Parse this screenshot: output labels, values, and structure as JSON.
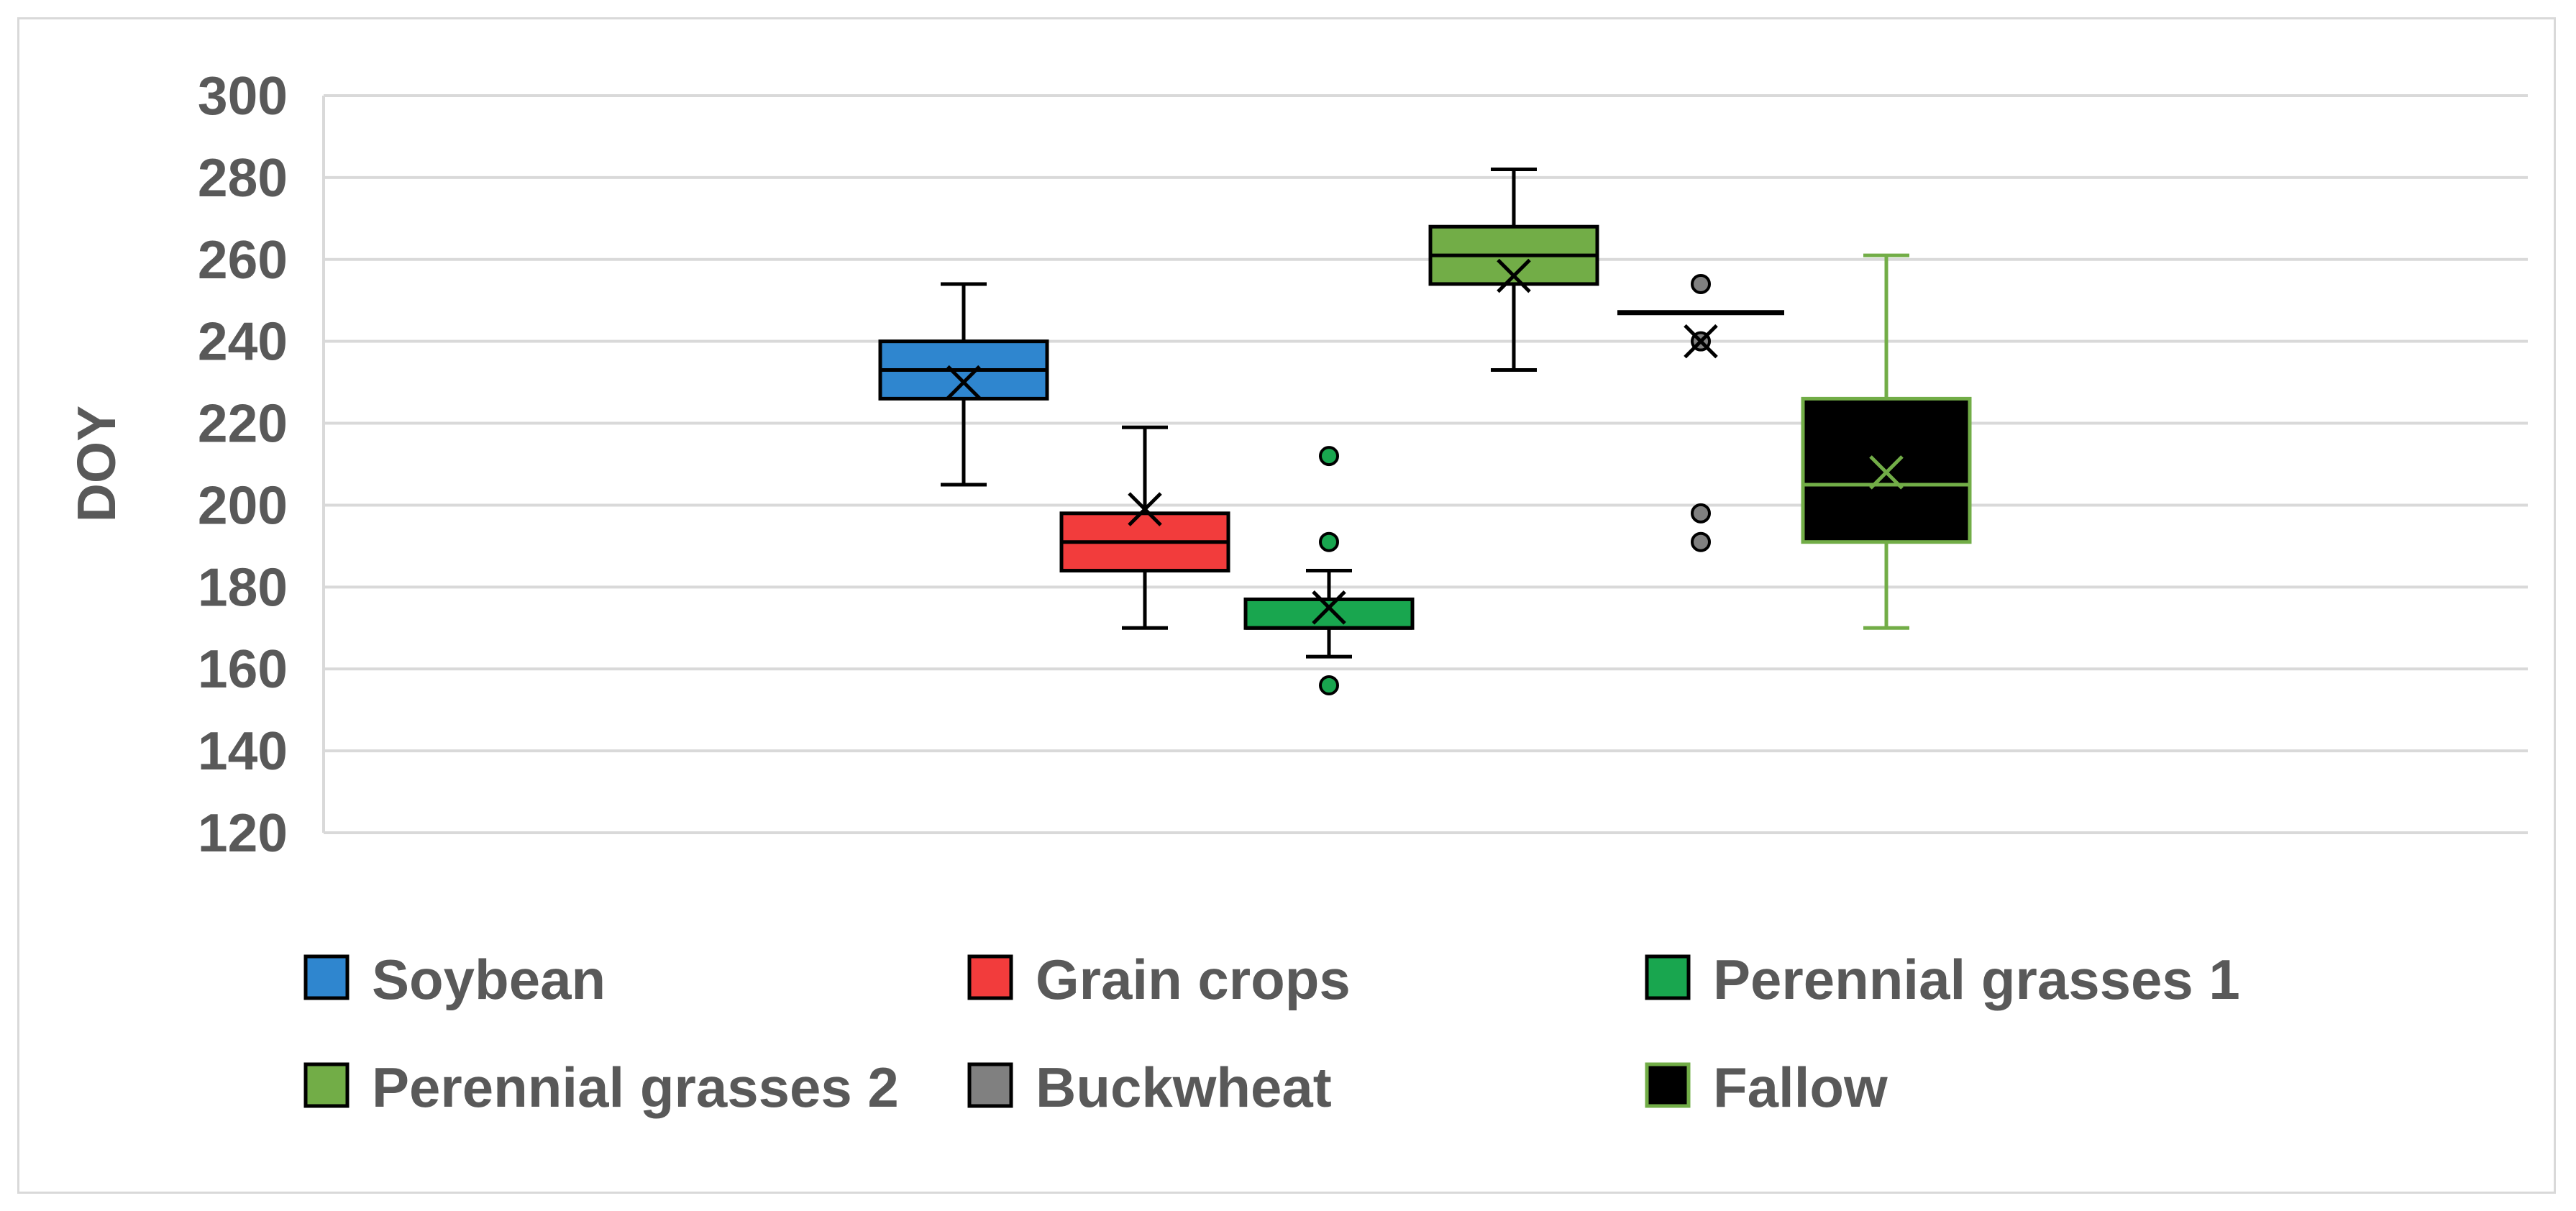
{
  "chart_data": {
    "type": "boxplot",
    "title": "",
    "xlabel": "",
    "ylabel": "DOY",
    "ylim": [
      120,
      300
    ],
    "yticks": [
      120,
      140,
      160,
      180,
      200,
      220,
      240,
      260,
      280,
      300
    ],
    "grid": true,
    "legend_position": "bottom",
    "series": [
      {
        "name": "Soybean",
        "color": "#2f86cf",
        "stroke": "#000000",
        "mean_color": "#000000",
        "min": 205,
        "q1": 226,
        "median": 233,
        "q3": 240,
        "max": 254,
        "mean": 230,
        "outliers": []
      },
      {
        "name": "Grain crops",
        "color": "#f23c3c",
        "stroke": "#000000",
        "mean_color": "#000000",
        "min": 170,
        "q1": 184,
        "median": 191,
        "q3": 198,
        "max": 219,
        "mean": 199,
        "outliers": []
      },
      {
        "name": "Perennial grasses 1",
        "color": "#19a64f",
        "stroke": "#000000",
        "mean_color": "#000000",
        "min": 163,
        "q1": 170,
        "median": 170,
        "q3": 177,
        "max": 184,
        "mean": 175,
        "outliers": [
          156,
          191,
          212
        ]
      },
      {
        "name": "Perennial grasses 2",
        "color": "#72ad47",
        "stroke": "#000000",
        "mean_color": "#000000",
        "min": 233,
        "q1": 254,
        "median": 261,
        "q3": 268,
        "max": 282,
        "mean": 256,
        "outliers": []
      },
      {
        "name": "Buckwheat",
        "color": "#808080",
        "stroke": "#000000",
        "mean_color": "#000000",
        "min": 247,
        "q1": 247,
        "median": 247,
        "q3": 247,
        "max": 247,
        "mean": 240,
        "outliers": [
          191,
          198,
          240,
          254
        ]
      },
      {
        "name": "Fallow",
        "color": "#000000",
        "stroke": "#72ad47",
        "mean_color": "#72ad47",
        "min": 170,
        "q1": 191,
        "median": 205,
        "q3": 226,
        "max": 261,
        "mean": 208,
        "outliers": []
      }
    ]
  }
}
